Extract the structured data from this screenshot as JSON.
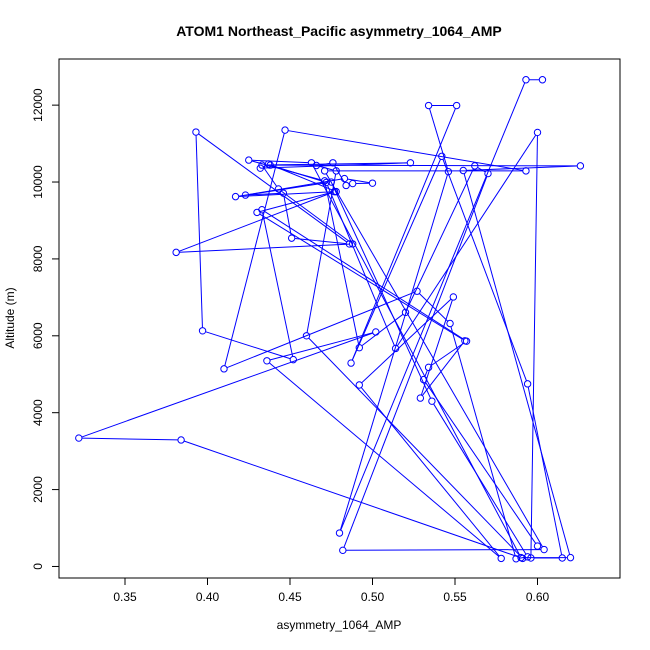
{
  "chart_data": {
    "type": "line",
    "title": "ATOM1 Northeast_Pacific asymmetry_1064_AMP",
    "xlabel": "asymmetry_1064_AMP",
    "ylabel": "Altitude (m)",
    "xlim": [
      0.31,
      0.65
    ],
    "ylim": [
      -300,
      13200
    ],
    "x_ticks": [
      0.35,
      0.4,
      0.45,
      0.5,
      0.55,
      0.6
    ],
    "x_tick_labels": [
      "0.35",
      "0.40",
      "0.45",
      "0.50",
      "0.55",
      "0.60"
    ],
    "y_ticks": [
      0,
      2000,
      4000,
      6000,
      8000,
      10000,
      12000
    ],
    "y_tick_labels": [
      "0",
      "2000",
      "4000",
      "6000",
      "8000",
      "10000",
      "12000"
    ],
    "grid": false,
    "colors": {
      "series": "#0000ff",
      "axis": "#000000"
    },
    "series": [
      {
        "marker": "open-circle",
        "points": [
          [
            0.603,
            12660
          ],
          [
            0.593,
            12660
          ],
          [
            0.48,
            870
          ],
          [
            0.546,
            10270
          ],
          [
            0.534,
            11990
          ],
          [
            0.551,
            11990
          ],
          [
            0.487,
            5290
          ],
          [
            0.542,
            10670
          ],
          [
            0.594,
            4750
          ],
          [
            0.615,
            220
          ],
          [
            0.596,
            220
          ],
          [
            0.6,
            11290
          ],
          [
            0.514,
            5670
          ],
          [
            0.472,
            9990
          ],
          [
            0.438,
            10440
          ],
          [
            0.626,
            10420
          ],
          [
            0.555,
            10300
          ],
          [
            0.62,
            230
          ],
          [
            0.59,
            230
          ],
          [
            0.463,
            10500
          ],
          [
            0.425,
            10570
          ],
          [
            0.471,
            10030
          ],
          [
            0.492,
            5690
          ],
          [
            0.52,
            6610
          ],
          [
            0.562,
            10420
          ],
          [
            0.57,
            10220
          ],
          [
            0.482,
            420
          ],
          [
            0.604,
            440
          ],
          [
            0.471,
            10290
          ],
          [
            0.593,
            10290
          ],
          [
            0.447,
            11350
          ],
          [
            0.41,
            5140
          ],
          [
            0.527,
            7160
          ],
          [
            0.547,
            6320
          ],
          [
            0.587,
            200
          ],
          [
            0.594,
            250
          ],
          [
            0.536,
            4300
          ],
          [
            0.475,
            10000
          ],
          [
            0.417,
            9620
          ],
          [
            0.478,
            9750
          ],
          [
            0.437,
            10470
          ],
          [
            0.432,
            10360
          ],
          [
            0.523,
            10500
          ],
          [
            0.433,
            10440
          ],
          [
            0.443,
            9820
          ],
          [
            0.488,
            8390
          ],
          [
            0.381,
            8170
          ],
          [
            0.477,
            9750
          ],
          [
            0.43,
            9210
          ],
          [
            0.556,
            5870
          ],
          [
            0.529,
            4380
          ],
          [
            0.549,
            7010
          ],
          [
            0.492,
            4720
          ],
          [
            0.578,
            210
          ],
          [
            0.436,
            5350
          ],
          [
            0.502,
            6100
          ],
          [
            0.322,
            3340
          ],
          [
            0.384,
            3290
          ],
          [
            0.591,
            210
          ],
          [
            0.46,
            6000
          ],
          [
            0.478,
            10290
          ],
          [
            0.466,
            10430
          ],
          [
            0.476,
            10500
          ],
          [
            0.484,
            9910
          ],
          [
            0.488,
            9960
          ],
          [
            0.5,
            9970
          ],
          [
            0.483,
            10090
          ],
          [
            0.423,
            9660
          ],
          [
            0.446,
            9710
          ],
          [
            0.451,
            8540
          ],
          [
            0.486,
            8390
          ],
          [
            0.393,
            11300
          ],
          [
            0.397,
            6130
          ],
          [
            0.452,
            5380
          ],
          [
            0.433,
            9280
          ],
          [
            0.557,
            5860
          ],
          [
            0.534,
            5180
          ],
          [
            0.531,
            4860
          ],
          [
            0.6,
            530
          ]
        ]
      }
    ]
  }
}
